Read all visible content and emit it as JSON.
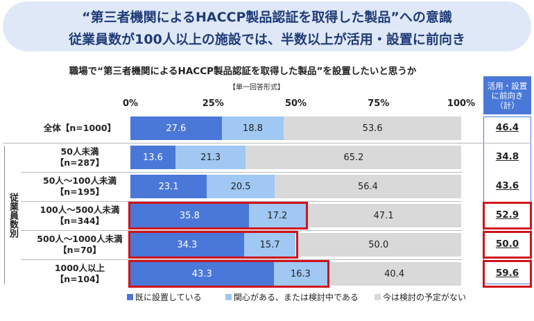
{
  "chart_data": {
    "type": "stacked_bar_horizontal",
    "title": "“第三者機関によるHACCP製品認証を取得した製品”への意識",
    "subtitle": "従業員数が100人以上の施設では、半数以上が活用・設置に前向き",
    "question": "職場で“第三者機関によるHACCP製品認証を取得した製品”を設置したいと思うか",
    "answer_format": "【単一回答形式】",
    "group_label": "従業員数別",
    "categories": [
      "全体【n=1000】",
      "50人未満\n【n=287】",
      "50人～100人未満\n【n=195】",
      "100人～500人未満\n【n=344】",
      "500人～1000人未満\n【n=70】",
      "1000人以上\n【n=104】"
    ],
    "highlighted": [
      false,
      false,
      false,
      true,
      true,
      true
    ],
    "xlim": [
      0,
      100
    ],
    "xticks": [
      {
        "value": 0,
        "label": "0%"
      },
      {
        "value": 25,
        "label": "25%"
      },
      {
        "value": 50,
        "label": "50%"
      },
      {
        "value": 75,
        "label": "75%"
      },
      {
        "value": 100,
        "label": "100%"
      }
    ],
    "series": [
      {
        "name": "既に設置している",
        "color": "#4a78d8",
        "text_color": "#ffffff",
        "values": [
          27.6,
          13.6,
          23.1,
          35.8,
          34.3,
          43.3
        ]
      },
      {
        "name": "関心がある、または検討中である",
        "color": "#a0c8f2",
        "text_color": "#222222",
        "values": [
          18.8,
          21.3,
          20.5,
          17.2,
          15.7,
          16.3
        ]
      },
      {
        "name": "今は検討の予定がない",
        "color": "#d9d9d9",
        "text_color": "#222222",
        "values": [
          53.6,
          65.2,
          56.4,
          47.1,
          50.0,
          40.4
        ],
        "value_labels": [
          "53.6",
          "65.2",
          "56.4",
          "47.1",
          "50.0",
          "40.4"
        ]
      }
    ],
    "total_column": {
      "header": "活用・設置\nに前向き\n（計）",
      "values": [
        46.4,
        34.8,
        43.6,
        52.9,
        50.0,
        59.6
      ],
      "value_labels": [
        "46.4",
        "34.8",
        "43.6",
        "52.9",
        "50.0",
        "59.6"
      ]
    }
  }
}
